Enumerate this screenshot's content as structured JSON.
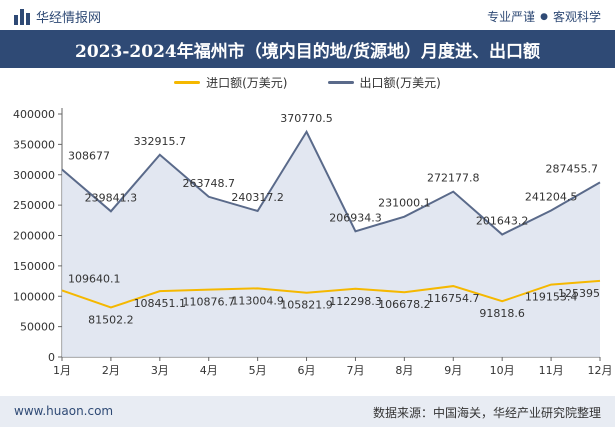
{
  "header": {
    "brand": "华经情报网",
    "slogan_left": "专业严谨",
    "slogan_right": "客观科学"
  },
  "title": "2023-2024年福州市（境内目的地/货源地）月度进、出口额",
  "footer": {
    "website": "www.huaon.com",
    "source": "数据来源：中国海关，华经产业研究院整理"
  },
  "colors": {
    "import": "#f5b800",
    "export": "#5a6a8a",
    "export_fill": "#dde3ee",
    "title_bg": "#2f4a75"
  },
  "chart_data": {
    "type": "line",
    "categories": [
      "1月",
      "2月",
      "3月",
      "4月",
      "5月",
      "6月",
      "7月",
      "8月",
      "9月",
      "10月",
      "11月",
      "12月"
    ],
    "series": [
      {
        "name": "进口额(万美元)",
        "values": [
          109640.1,
          81502.2,
          108451.1,
          110876.7,
          113004.9,
          105821.9,
          112298.3,
          106678.2,
          116754.7,
          91818.6,
          119153.4,
          125395
        ],
        "labels": [
          "109640.1",
          "81502.2",
          "108451.1",
          "110876.7",
          "113004.9",
          "105821.9",
          "112298.3",
          "106678.2",
          "116754.7",
          "91818.6",
          "119153.4",
          "125395"
        ]
      },
      {
        "name": "出口额(万美元)",
        "values": [
          308677,
          239841.3,
          332915.7,
          263748.7,
          240317.2,
          370770.5,
          206934.3,
          231000.1,
          272177.8,
          201643.2,
          241204.5,
          287455.7
        ],
        "labels": [
          "308677",
          "239841.3",
          "332915.7",
          "263748.7",
          "240317.2",
          "370770.5",
          "206934.3",
          "231000.1",
          "272177.8",
          "201643.2",
          "241204.5",
          "287455.7"
        ]
      }
    ],
    "ylim": [
      0,
      400000
    ],
    "yticks": [
      0,
      50000,
      100000,
      150000,
      200000,
      250000,
      300000,
      350000,
      400000
    ],
    "legend_position": "top-center",
    "grid": false
  }
}
